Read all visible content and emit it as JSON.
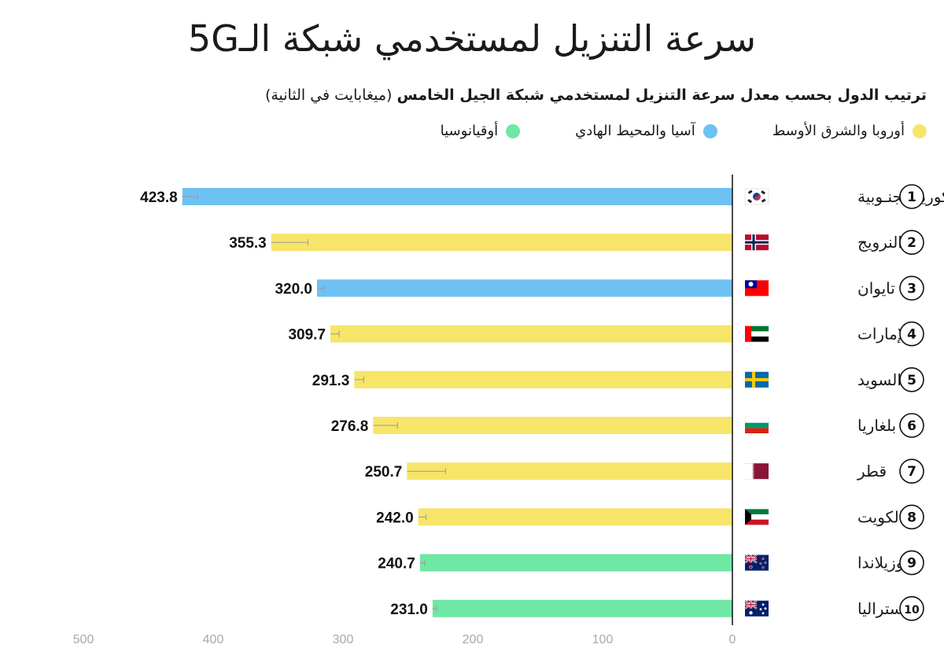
{
  "title": "سرعة التنزيل لمستخدمي شبكة الـ5G",
  "subtitle": {
    "main": "ترتيب الدول بحسب معدل سرعة التنزيل لمستخدمي شبكة الجيل الخامس",
    "unit": "(ميغابايت في الثانية)"
  },
  "legend": [
    {
      "label": "أوروبا والشرق الأوسط",
      "color": "#f7e56a"
    },
    {
      "label": "آسيا والمحيط الهادي",
      "color": "#6ec1f3"
    },
    {
      "label": "أوقيانوسيا",
      "color": "#6ee8a4"
    }
  ],
  "chart_data": {
    "type": "bar",
    "orientation": "horizontal",
    "direction": "right-to-left",
    "title": "سرعة التنزيل لمستخدمي شبكة الـ5G",
    "xlim": [
      0,
      500
    ],
    "ticks": [
      0,
      100,
      200,
      300,
      400,
      500
    ],
    "ranks": [
      "1",
      "2",
      "3",
      "4",
      "5",
      "6",
      "7",
      "8",
      "9",
      "10"
    ],
    "categories": [
      "كوريا الجنـوبية",
      "النرويج",
      "تايوان",
      "الإمارات",
      "السويد",
      "بلغاريا",
      "قطر",
      "الكويت",
      "نيوزيلاندا",
      "أستراليا"
    ],
    "values": [
      423.8,
      355.3,
      320.0,
      309.7,
      291.3,
      276.8,
      250.7,
      242.0,
      240.7,
      231.0
    ],
    "value_labels": [
      "423.8",
      "355.3",
      "320.0",
      "309.7",
      "291.3",
      "276.8",
      "250.7",
      "242.0",
      "240.7",
      "231.0"
    ],
    "error_low": [
      412,
      327,
      315,
      303,
      284,
      258,
      221,
      236,
      237,
      228
    ],
    "region": [
      "asia",
      "europe",
      "asia",
      "europe",
      "europe",
      "europe",
      "europe",
      "europe",
      "oceania",
      "oceania"
    ],
    "region_colors": {
      "europe": "#f7e56a",
      "asia": "#6ec1f3",
      "oceania": "#6ee8a4"
    },
    "flags": [
      "south-korea-flag-icon",
      "norway-flag-icon",
      "taiwan-flag-icon",
      "uae-flag-icon",
      "sweden-flag-icon",
      "bulgaria-flag-icon",
      "qatar-flag-icon",
      "kuwait-flag-icon",
      "new-zealand-flag-icon",
      "australia-flag-icon"
    ]
  }
}
